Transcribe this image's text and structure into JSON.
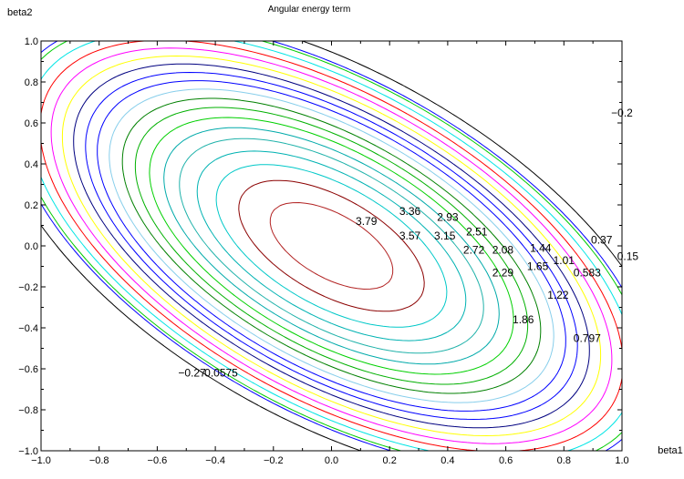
{
  "chart_data": {
    "type": "contour",
    "title": "Angular energy term",
    "xlabel": "beta1",
    "ylabel": "beta2",
    "xlim": [
      -1.0,
      1.0
    ],
    "ylim": [
      -1.0,
      1.0
    ],
    "x_ticks": [
      "−1.0",
      "−0.8",
      "−0.6",
      "−0.4",
      "−0.2",
      "0.0",
      "0.2",
      "0.4",
      "0.6",
      "0.8",
      "1.0"
    ],
    "y_ticks": [
      "−1.0",
      "−0.8",
      "−0.6",
      "−0.4",
      "−0.2",
      "0.0",
      "0.2",
      "0.4",
      "0.6",
      "0.8",
      "1.0"
    ],
    "grid": false,
    "legend": "none",
    "contour_levels": [
      {
        "value": -0.27,
        "color": "#000000"
      },
      {
        "value": 0.0575,
        "color": "#0000ff"
      },
      {
        "value": 0.15,
        "color": "#00cc00"
      },
      {
        "value": 0.37,
        "color": "#00e5e5"
      },
      {
        "value": 0.583,
        "color": "#ff0000"
      },
      {
        "value": 0.797,
        "color": "#ff00ff"
      },
      {
        "value": 1.01,
        "color": "#ffff00"
      },
      {
        "value": 1.22,
        "color": "#000080"
      },
      {
        "value": 1.44,
        "color": "#0000ff"
      },
      {
        "value": 1.65,
        "color": "#0000ff"
      },
      {
        "value": 1.86,
        "color": "#87ceeb"
      },
      {
        "value": 2.08,
        "color": "#008000"
      },
      {
        "value": 2.29,
        "color": "#00b000"
      },
      {
        "value": 2.51,
        "color": "#00d000"
      },
      {
        "value": 2.72,
        "color": "#00aaaa"
      },
      {
        "value": 2.93,
        "color": "#20b2aa"
      },
      {
        "value": 3.15,
        "color": "#00b2b2"
      },
      {
        "value": 3.36,
        "color": "#00c8c8"
      },
      {
        "value": 3.57,
        "color": "#8b0000"
      },
      {
        "value": 3.79,
        "color": "#b22222"
      }
    ],
    "level_labels": [
      {
        "text": "3.79",
        "x": 0.12,
        "y": 0.12
      },
      {
        "text": "3.36",
        "x": 0.27,
        "y": 0.17
      },
      {
        "text": "2.93",
        "x": 0.4,
        "y": 0.14
      },
      {
        "text": "3.57",
        "x": 0.27,
        "y": 0.05
      },
      {
        "text": "3.15",
        "x": 0.39,
        "y": 0.05
      },
      {
        "text": "2.51",
        "x": 0.5,
        "y": 0.07
      },
      {
        "text": "2.72",
        "x": 0.49,
        "y": -0.02
      },
      {
        "text": "2.08",
        "x": 0.59,
        "y": -0.02
      },
      {
        "text": "1.44",
        "x": 0.72,
        "y": -0.01
      },
      {
        "text": "2.29",
        "x": 0.59,
        "y": -0.13
      },
      {
        "text": "1.65",
        "x": 0.71,
        "y": -0.1
      },
      {
        "text": "1.01",
        "x": 0.8,
        "y": -0.07
      },
      {
        "text": "0.37",
        "x": 0.93,
        "y": 0.03
      },
      {
        "text": "0.15",
        "x": 1.02,
        "y": -0.05
      },
      {
        "text": "0.583",
        "x": 0.88,
        "y": -0.13
      },
      {
        "text": "1.22",
        "x": 0.78,
        "y": -0.24
      },
      {
        "text": "1.86",
        "x": 0.66,
        "y": -0.36
      },
      {
        "text": "0.797",
        "x": 0.88,
        "y": -0.45
      },
      {
        "text": "−0.2",
        "x": 1.0,
        "y": 0.65
      },
      {
        "text": "−0.27",
        "x": -0.48,
        "y": -0.62
      },
      {
        "text": "0.0575",
        "x": -0.38,
        "y": -0.62
      }
    ]
  }
}
